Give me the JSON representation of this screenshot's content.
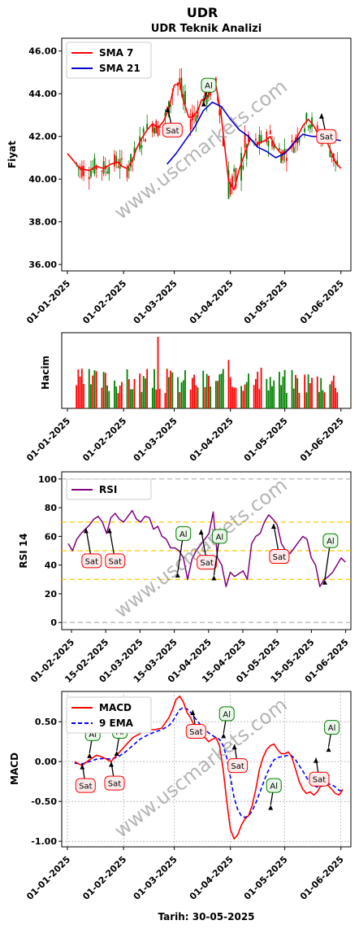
{
  "title": "UDR",
  "footer": "Tarih: 30-05-2025",
  "watermark": "www.uscmarkets.com",
  "colors": {
    "up": "#008000",
    "down": "#ff0000",
    "sma7": "#ff0000",
    "sma21": "#0000cc",
    "rsi": "#800080",
    "macd": "#ff0000",
    "signal": "#0000ff",
    "band": "#ffcc00",
    "ref": "#aaaaaa"
  },
  "chart_data": [
    {
      "type": "candlestick",
      "title": "UDR Teknik Analizi",
      "ylabel": "Fiyat",
      "ylim": [
        35.7,
        46.6
      ],
      "yticks": [
        "36.00",
        "38.00",
        "40.00",
        "42.00",
        "44.00",
        "46.00"
      ],
      "xticks": [
        "01-01-2025",
        "01-02-2025",
        "01-03-2025",
        "01-04-2025",
        "01-05-2025",
        "01-06-2025"
      ],
      "legend": {
        "position": "top-left",
        "entries": [
          "SMA 7",
          "SMA 21"
        ]
      },
      "series": [
        {
          "name": "SMA 7",
          "x": [
            0,
            7,
            12,
            16,
            20,
            24,
            28,
            30,
            33,
            36,
            38,
            41,
            44,
            47,
            50,
            53,
            56,
            59,
            62,
            64,
            67,
            69,
            72,
            74,
            77,
            79,
            82,
            85,
            89,
            92,
            95,
            98,
            101,
            104,
            106,
            109,
            112,
            115,
            118,
            121,
            124,
            127,
            130,
            133,
            136,
            139,
            142,
            145,
            148,
            151
          ],
          "values": [
            41.2,
            40.5,
            40.4,
            40.6,
            40.5,
            40.7,
            40.8,
            40.6,
            40.5,
            40.9,
            41.4,
            41.9,
            42.3,
            42.6,
            42.4,
            42.7,
            43.3,
            44.4,
            44.5,
            43.7,
            42.9,
            42.9,
            43.2,
            43.7,
            43.8,
            44.2,
            44.4,
            42.9,
            39.9,
            39.5,
            40.5,
            41.2,
            41.9,
            41.6,
            41.7,
            41.8,
            42.0,
            41.5,
            41.2,
            41.3,
            41.5,
            42.0,
            42.5,
            42.8,
            42.5,
            42.0,
            42.0,
            41.4,
            40.8,
            40.5
          ]
        },
        {
          "name": "SMA 21",
          "x": [
            55,
            60,
            65,
            70,
            75,
            80,
            85,
            90,
            95,
            100,
            105,
            110,
            115,
            120,
            125,
            130,
            135,
            140,
            145,
            151
          ],
          "values": [
            40.7,
            41.2,
            41.8,
            42.4,
            43.2,
            43.6,
            43.4,
            42.8,
            42.3,
            42.0,
            41.5,
            41.3,
            41.0,
            41.2,
            41.7,
            42.1,
            42.0,
            42.0,
            41.9,
            41.8
          ]
        }
      ],
      "annotations": [
        {
          "label": "Sat",
          "x": 58,
          "y": 42.3
        },
        {
          "label": "Al",
          "x": 78,
          "y": 44.4
        },
        {
          "label": "Sat",
          "x": 143,
          "y": 42.0
        }
      ]
    },
    {
      "type": "bar",
      "ylabel": "Hacim",
      "xticks": [
        "01-01-2025",
        "01-02-2025",
        "01-03-2025",
        "01-04-2025",
        "01-05-2025",
        "01-06-2025"
      ]
    },
    {
      "type": "line",
      "ylabel": "RSI 14",
      "ylim": [
        -5,
        105
      ],
      "yticks": [
        "0",
        "20",
        "40",
        "60",
        "80",
        "100"
      ],
      "xticks": [
        "01-02-2025",
        "15-02-2025",
        "01-03-2025",
        "15-03-2025",
        "01-04-2025",
        "15-04-2025",
        "01-05-2025",
        "15-05-2025",
        "01-06-2025"
      ],
      "legend": {
        "position": "top-left",
        "entries": [
          "RSI"
        ]
      },
      "series": [
        {
          "name": "RSI",
          "x": [
            22,
            24,
            26,
            28,
            30,
            32,
            34,
            36,
            38,
            40,
            42,
            44,
            46,
            48,
            50,
            52,
            54,
            56,
            58,
            60,
            62,
            64,
            66,
            68,
            70,
            72,
            74,
            76,
            78,
            80,
            82,
            84,
            86,
            88,
            90,
            92,
            94,
            96,
            98,
            100,
            102,
            104,
            106,
            108,
            110,
            112,
            114,
            116,
            118,
            120,
            122,
            124,
            126,
            128,
            130,
            132,
            134,
            136,
            138,
            140,
            142,
            144,
            146,
            148,
            150,
            152
          ],
          "values": [
            55,
            50,
            58,
            62,
            65,
            68,
            72,
            74,
            70,
            62,
            73,
            76,
            72,
            70,
            74,
            78,
            72,
            70,
            74,
            73,
            65,
            67,
            60,
            58,
            52,
            52,
            50,
            45,
            30,
            44,
            50,
            54,
            58,
            62,
            77,
            45,
            40,
            25,
            35,
            32,
            34,
            36,
            30,
            55,
            60,
            62,
            70,
            75,
            72,
            68,
            55,
            50,
            48,
            52,
            56,
            60,
            58,
            45,
            40,
            25,
            30,
            32,
            35,
            40,
            45,
            42
          ]
        }
      ],
      "reference_lines": [
        0,
        30,
        50,
        70,
        100
      ],
      "annotations": [
        {
          "label": "Sat",
          "x": 33,
          "y": 43
        },
        {
          "label": "Sat",
          "x": 44,
          "y": 43
        },
        {
          "label": "Al",
          "x": 76,
          "y": 62
        },
        {
          "label": "Sat",
          "x": 87,
          "y": 42
        },
        {
          "label": "Al",
          "x": 93,
          "y": 60
        },
        {
          "label": "Sat",
          "x": 121,
          "y": 46
        },
        {
          "label": "Al",
          "x": 145,
          "y": 57
        }
      ]
    },
    {
      "type": "line",
      "ylabel": "MACD",
      "ylim": [
        -1.07,
        0.88
      ],
      "yticks": [
        "-1.00",
        "-0.50",
        "0.00",
        "0.50"
      ],
      "xticks": [
        "01-01-2025",
        "01-02-2025",
        "01-03-2025",
        "01-04-2025",
        "01-05-2025",
        "01-06-2025"
      ],
      "legend": {
        "position": "top-left",
        "entries": [
          "MACD",
          "9 EMA"
        ]
      },
      "series": [
        {
          "name": "MACD",
          "x": [
            4,
            8,
            12,
            16,
            20,
            24,
            28,
            32,
            36,
            40,
            44,
            48,
            52,
            56,
            58,
            60,
            62,
            64,
            66,
            68,
            70,
            72,
            74,
            76,
            78,
            80,
            82,
            84,
            86,
            88,
            90,
            92,
            94,
            96,
            98,
            100,
            102,
            104,
            106,
            108,
            110,
            112,
            114,
            116,
            118,
            120,
            122,
            124,
            126,
            128,
            130,
            132,
            134,
            136,
            138,
            140,
            142,
            144,
            146,
            148,
            150,
            152
          ],
          "values": [
            0.0,
            -0.05,
            0.02,
            0.08,
            0.05,
            0.0,
            0.1,
            0.2,
            0.3,
            0.35,
            0.4,
            0.4,
            0.42,
            0.55,
            0.65,
            0.78,
            0.82,
            0.75,
            0.62,
            0.55,
            0.45,
            0.38,
            0.35,
            0.3,
            0.25,
            0.28,
            0.3,
            0.2,
            -0.1,
            -0.5,
            -0.85,
            -0.97,
            -0.92,
            -0.8,
            -0.72,
            -0.68,
            -0.55,
            -0.35,
            -0.1,
            0.05,
            0.15,
            0.2,
            0.22,
            0.15,
            0.1,
            0.1,
            0.12,
            0.05,
            -0.1,
            -0.25,
            -0.35,
            -0.4,
            -0.38,
            -0.42,
            -0.38,
            -0.3,
            -0.25,
            -0.3,
            -0.35,
            -0.4,
            -0.42,
            -0.35
          ]
        },
        {
          "name": "9 EMA",
          "x": [
            4,
            8,
            12,
            16,
            20,
            24,
            28,
            32,
            36,
            40,
            44,
            48,
            52,
            56,
            58,
            60,
            62,
            64,
            66,
            68,
            70,
            72,
            74,
            76,
            78,
            80,
            82,
            84,
            86,
            88,
            90,
            92,
            94,
            96,
            98,
            100,
            102,
            104,
            106,
            108,
            110,
            112,
            114,
            116,
            118,
            120,
            122,
            124,
            126,
            128,
            130,
            132,
            134,
            136,
            138,
            140,
            142,
            144,
            146,
            148,
            150,
            152
          ],
          "values": [
            -0.02,
            -0.03,
            0.0,
            0.03,
            0.04,
            0.03,
            0.06,
            0.12,
            0.2,
            0.28,
            0.33,
            0.37,
            0.4,
            0.45,
            0.5,
            0.58,
            0.65,
            0.68,
            0.66,
            0.62,
            0.56,
            0.5,
            0.45,
            0.4,
            0.36,
            0.33,
            0.3,
            0.28,
            0.2,
            0.05,
            -0.2,
            -0.45,
            -0.6,
            -0.68,
            -0.7,
            -0.68,
            -0.62,
            -0.52,
            -0.4,
            -0.28,
            -0.16,
            -0.06,
            0.02,
            0.05,
            0.06,
            0.07,
            0.08,
            0.07,
            0.02,
            -0.05,
            -0.12,
            -0.2,
            -0.26,
            -0.3,
            -0.32,
            -0.31,
            -0.3,
            -0.28,
            -0.29,
            -0.32,
            -0.36,
            -0.37
          ]
        }
      ],
      "annotations": [
        {
          "label": "Sat",
          "x": 10,
          "y": -0.3
        },
        {
          "label": "Al",
          "x": 14,
          "y": 0.35
        },
        {
          "label": "Sat",
          "x": 26,
          "y": -0.27
        },
        {
          "label": "Al",
          "x": 29,
          "y": 0.38
        },
        {
          "label": "Sat",
          "x": 71,
          "y": 0.38
        },
        {
          "label": "Al",
          "x": 88,
          "y": 0.6
        },
        {
          "label": "Sat",
          "x": 94,
          "y": -0.05
        },
        {
          "label": "Al",
          "x": 114,
          "y": -0.3
        },
        {
          "label": "Sat",
          "x": 139,
          "y": -0.22
        },
        {
          "label": "Al",
          "x": 146,
          "y": 0.43
        }
      ]
    }
  ]
}
